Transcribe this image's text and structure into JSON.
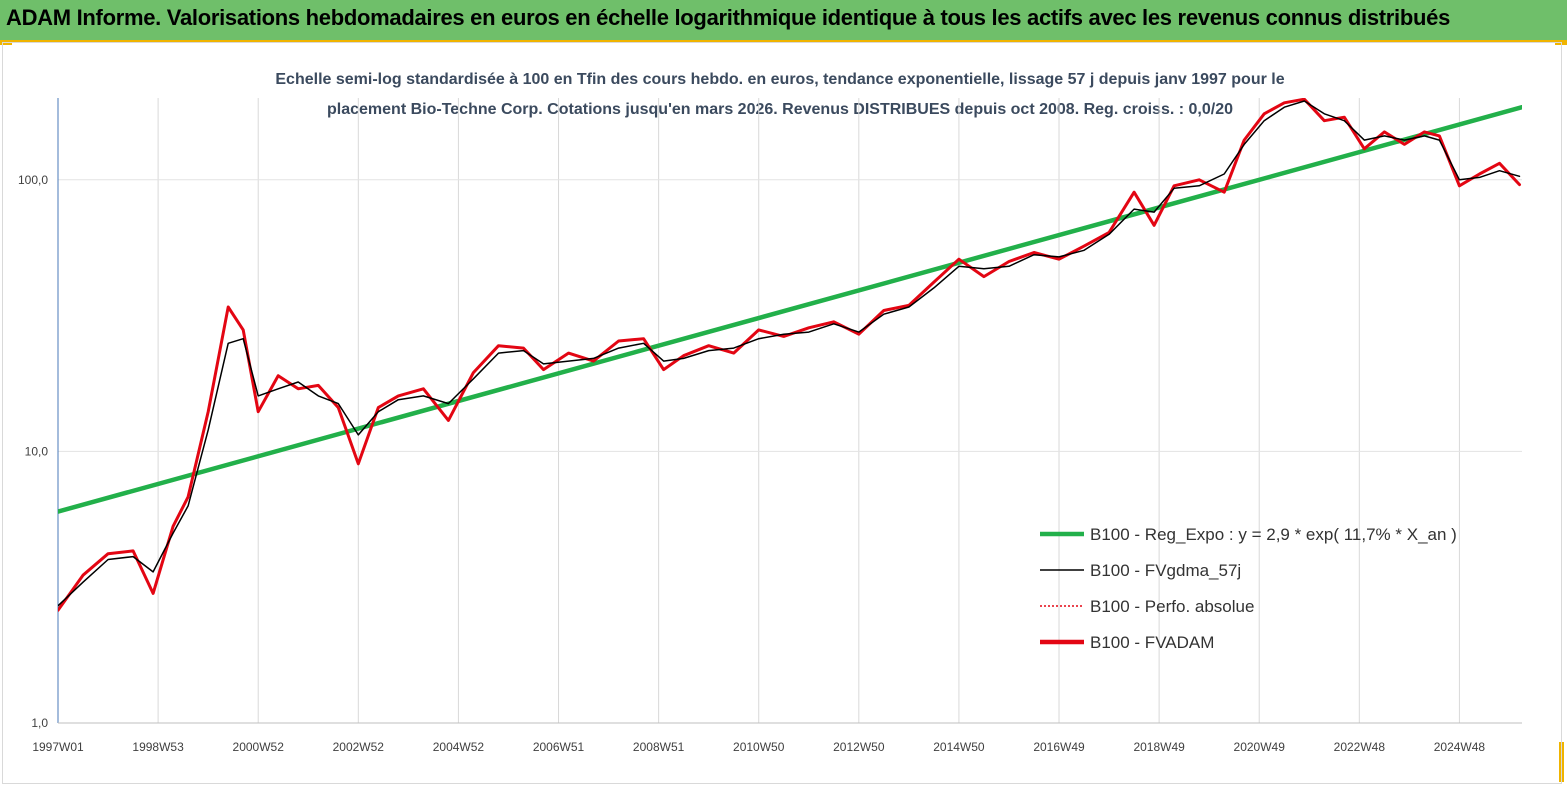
{
  "header": {
    "title": "ADAM Informe. Valorisations hebdomadaires en euros en échelle logarithmique identique à tous les actifs avec les revenus connus distribués"
  },
  "chart_data": {
    "type": "line",
    "title_lines": [
      "Echelle semi-log standardisée à 100 en Tfin des cours hebdo. en euros, tendance exponentielle, lissage 57 j depuis janv 1997 pour le",
      "placement Bio-Techne Corp. Cotations jusqu'en mars 2026. Revenus DISTRIBUES depuis oct 2008. Reg. croiss. : 0,0/20"
    ],
    "y_scale": "log",
    "ylim": [
      1,
      200
    ],
    "y_ticks": [
      {
        "value": 1,
        "label": "1,0"
      },
      {
        "value": 10,
        "label": "10,0"
      },
      {
        "value": 100,
        "label": "100,0"
      }
    ],
    "xlim": [
      1997.0,
      2026.25
    ],
    "x_ticks": [
      {
        "value": 1997.0,
        "label": "1997W01"
      },
      {
        "value": 1999.0,
        "label": "1998W53"
      },
      {
        "value": 2001.0,
        "label": "2000W52"
      },
      {
        "value": 2003.0,
        "label": "2002W52"
      },
      {
        "value": 2005.0,
        "label": "2004W52"
      },
      {
        "value": 2007.0,
        "label": "2006W51"
      },
      {
        "value": 2009.0,
        "label": "2008W51"
      },
      {
        "value": 2011.0,
        "label": "2010W50"
      },
      {
        "value": 2013.0,
        "label": "2012W50"
      },
      {
        "value": 2015.0,
        "label": "2014W50"
      },
      {
        "value": 2017.0,
        "label": "2016W49"
      },
      {
        "value": 2019.0,
        "label": "2018W49"
      },
      {
        "value": 2021.0,
        "label": "2020W49"
      },
      {
        "value": 2023.0,
        "label": "2022W48"
      },
      {
        "value": 2025.0,
        "label": "2024W48"
      }
    ],
    "grid": "vertical",
    "legend_position": "right",
    "series": [
      {
        "name": "B100 - Reg_Expo : y = 2,9 * exp( 11,7% *  X_an )",
        "color": "#22b04a",
        "style": "thick",
        "x": [
          1997.0,
          2026.25
        ],
        "values": [
          6.0,
          185.0
        ]
      },
      {
        "name": "B100 - FVgdma_57j",
        "color": "#000000",
        "style": "thin",
        "x": [
          1997.0,
          1997.5,
          1998.0,
          1998.5,
          1998.9,
          1999.3,
          1999.6,
          2000.0,
          2000.4,
          2000.7,
          2001.0,
          2001.4,
          2001.8,
          2002.2,
          2002.6,
          2003.0,
          2003.4,
          2003.8,
          2004.3,
          2004.8,
          2005.3,
          2005.8,
          2006.3,
          2006.7,
          2007.2,
          2007.7,
          2008.2,
          2008.7,
          2009.1,
          2009.5,
          2010.0,
          2010.5,
          2011.0,
          2011.5,
          2012.0,
          2012.5,
          2013.0,
          2013.5,
          2014.0,
          2014.5,
          2015.0,
          2015.5,
          2016.0,
          2016.5,
          2017.0,
          2017.5,
          2018.0,
          2018.5,
          2018.9,
          2019.3,
          2019.8,
          2020.3,
          2020.7,
          2021.1,
          2021.5,
          2021.9,
          2022.3,
          2022.7,
          2023.1,
          2023.5,
          2023.9,
          2024.3,
          2024.6,
          2025.0,
          2025.4,
          2025.8,
          2026.2
        ],
        "values": [
          2.7,
          3.3,
          4.0,
          4.1,
          3.6,
          5.0,
          6.3,
          12.0,
          25.0,
          26.0,
          16.0,
          17.0,
          18.0,
          16.0,
          15.0,
          11.5,
          14.0,
          15.5,
          16.0,
          15.0,
          18.5,
          23.0,
          23.5,
          21.0,
          21.5,
          22.0,
          24.0,
          25.0,
          21.5,
          22.0,
          23.5,
          24.0,
          26.0,
          27.0,
          27.5,
          29.5,
          27.5,
          32.0,
          34.0,
          40.0,
          48.0,
          47.0,
          48.0,
          53.0,
          52.0,
          55.0,
          63.0,
          78.0,
          76.0,
          93.0,
          95.0,
          105.0,
          135.0,
          165.0,
          185.0,
          195.0,
          175.0,
          165.0,
          140.0,
          145.0,
          140.0,
          145.0,
          140.0,
          100.0,
          102.0,
          108.0,
          103.0
        ]
      },
      {
        "name": "B100 - Perfo. absolue",
        "color": "#e30613",
        "style": "dotted",
        "x": [
          1997.0,
          1997.5,
          1998.0,
          1998.5,
          1998.9,
          1999.3,
          1999.6,
          2000.0,
          2000.4,
          2000.7,
          2001.0,
          2001.4,
          2001.8,
          2002.2,
          2002.6,
          2003.0,
          2003.4,
          2003.8,
          2004.3,
          2004.8,
          2005.3,
          2005.8,
          2006.3,
          2006.7,
          2007.2,
          2007.7,
          2008.2,
          2008.7,
          2009.1,
          2009.5,
          2010.0,
          2010.5,
          2011.0,
          2011.5,
          2012.0,
          2012.5,
          2013.0,
          2013.5,
          2014.0,
          2014.5,
          2015.0,
          2015.5,
          2016.0,
          2016.5,
          2017.0,
          2017.5,
          2018.0,
          2018.5,
          2018.9,
          2019.3,
          2019.8,
          2020.3,
          2020.7,
          2021.1,
          2021.5,
          2021.9,
          2022.3,
          2022.7,
          2023.1,
          2023.5,
          2023.9,
          2024.3,
          2024.6,
          2025.0,
          2025.4,
          2025.8,
          2026.2
        ],
        "values": [
          2.6,
          3.5,
          4.2,
          4.3,
          3.0,
          5.3,
          6.8,
          14.0,
          34.0,
          28.0,
          14.0,
          19.0,
          17.0,
          17.5,
          14.5,
          9.0,
          14.5,
          16.0,
          17.0,
          13.0,
          19.5,
          24.5,
          24.0,
          20.0,
          23.0,
          21.5,
          25.5,
          26.0,
          20.0,
          22.5,
          24.5,
          23.0,
          28.0,
          26.5,
          28.5,
          30.0,
          27.0,
          33.0,
          34.5,
          42.0,
          51.0,
          44.0,
          50.0,
          54.0,
          51.0,
          57.0,
          64.0,
          90.0,
          68.0,
          95.0,
          100.0,
          90.0,
          140.0,
          175.0,
          192.0,
          198.0,
          165.0,
          170.0,
          130.0,
          150.0,
          135.0,
          150.0,
          145.0,
          95.0,
          105.0,
          115.0,
          96.0
        ]
      },
      {
        "name": "B100 - FVADAM",
        "color": "#e30613",
        "style": "thick",
        "x": [
          1997.0,
          1997.5,
          1998.0,
          1998.5,
          1998.9,
          1999.3,
          1999.6,
          2000.0,
          2000.4,
          2000.7,
          2001.0,
          2001.4,
          2001.8,
          2002.2,
          2002.6,
          2003.0,
          2003.4,
          2003.8,
          2004.3,
          2004.8,
          2005.3,
          2005.8,
          2006.3,
          2006.7,
          2007.2,
          2007.7,
          2008.2,
          2008.7,
          2009.1,
          2009.5,
          2010.0,
          2010.5,
          2011.0,
          2011.5,
          2012.0,
          2012.5,
          2013.0,
          2013.5,
          2014.0,
          2014.5,
          2015.0,
          2015.5,
          2016.0,
          2016.5,
          2017.0,
          2017.5,
          2018.0,
          2018.5,
          2018.9,
          2019.3,
          2019.8,
          2020.3,
          2020.7,
          2021.1,
          2021.5,
          2021.9,
          2022.3,
          2022.7,
          2023.1,
          2023.5,
          2023.9,
          2024.3,
          2024.6,
          2025.0,
          2025.4,
          2025.8,
          2026.2
        ],
        "values": [
          2.6,
          3.5,
          4.2,
          4.3,
          3.0,
          5.3,
          6.8,
          14.0,
          34.0,
          28.0,
          14.0,
          19.0,
          17.0,
          17.5,
          14.5,
          9.0,
          14.5,
          16.0,
          17.0,
          13.0,
          19.5,
          24.5,
          24.0,
          20.0,
          23.0,
          21.5,
          25.5,
          26.0,
          20.0,
          22.5,
          24.5,
          23.0,
          28.0,
          26.5,
          28.5,
          30.0,
          27.0,
          33.0,
          34.5,
          42.0,
          51.0,
          44.0,
          50.0,
          54.0,
          51.0,
          57.0,
          64.0,
          90.0,
          68.0,
          95.0,
          100.0,
          90.0,
          140.0,
          175.0,
          192.0,
          198.0,
          165.0,
          170.0,
          130.0,
          150.0,
          135.0,
          150.0,
          145.0,
          95.0,
          105.0,
          115.0,
          96.0
        ]
      }
    ]
  }
}
